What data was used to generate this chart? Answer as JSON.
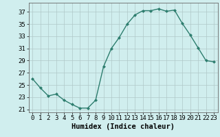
{
  "x": [
    0,
    1,
    2,
    3,
    4,
    5,
    6,
    7,
    8,
    9,
    10,
    11,
    12,
    13,
    14,
    15,
    16,
    17,
    18,
    19,
    20,
    21,
    22,
    23
  ],
  "y": [
    26,
    24.5,
    23.2,
    23.5,
    22.5,
    21.8,
    21.2,
    21.2,
    22.5,
    28,
    31,
    32.8,
    35,
    36.5,
    37.2,
    37.2,
    37.5,
    37.1,
    37.3,
    35.1,
    33.2,
    31.1,
    29.0,
    28.8
  ],
  "line_color": "#2d7d6e",
  "marker_color": "#2d7d6e",
  "bg_color": "#d0eeee",
  "grid_color": "#b0c8c8",
  "xlabel": "Humidex (Indice chaleur)",
  "xlim": [
    -0.5,
    23.5
  ],
  "ylim": [
    20.5,
    38.5
  ],
  "yticks": [
    21,
    23,
    25,
    27,
    29,
    31,
    33,
    35,
    37
  ],
  "xticks": [
    0,
    1,
    2,
    3,
    4,
    5,
    6,
    7,
    8,
    9,
    10,
    11,
    12,
    13,
    14,
    15,
    16,
    17,
    18,
    19,
    20,
    21,
    22,
    23
  ],
  "tick_font_size": 6.5,
  "label_font_size": 7.5
}
